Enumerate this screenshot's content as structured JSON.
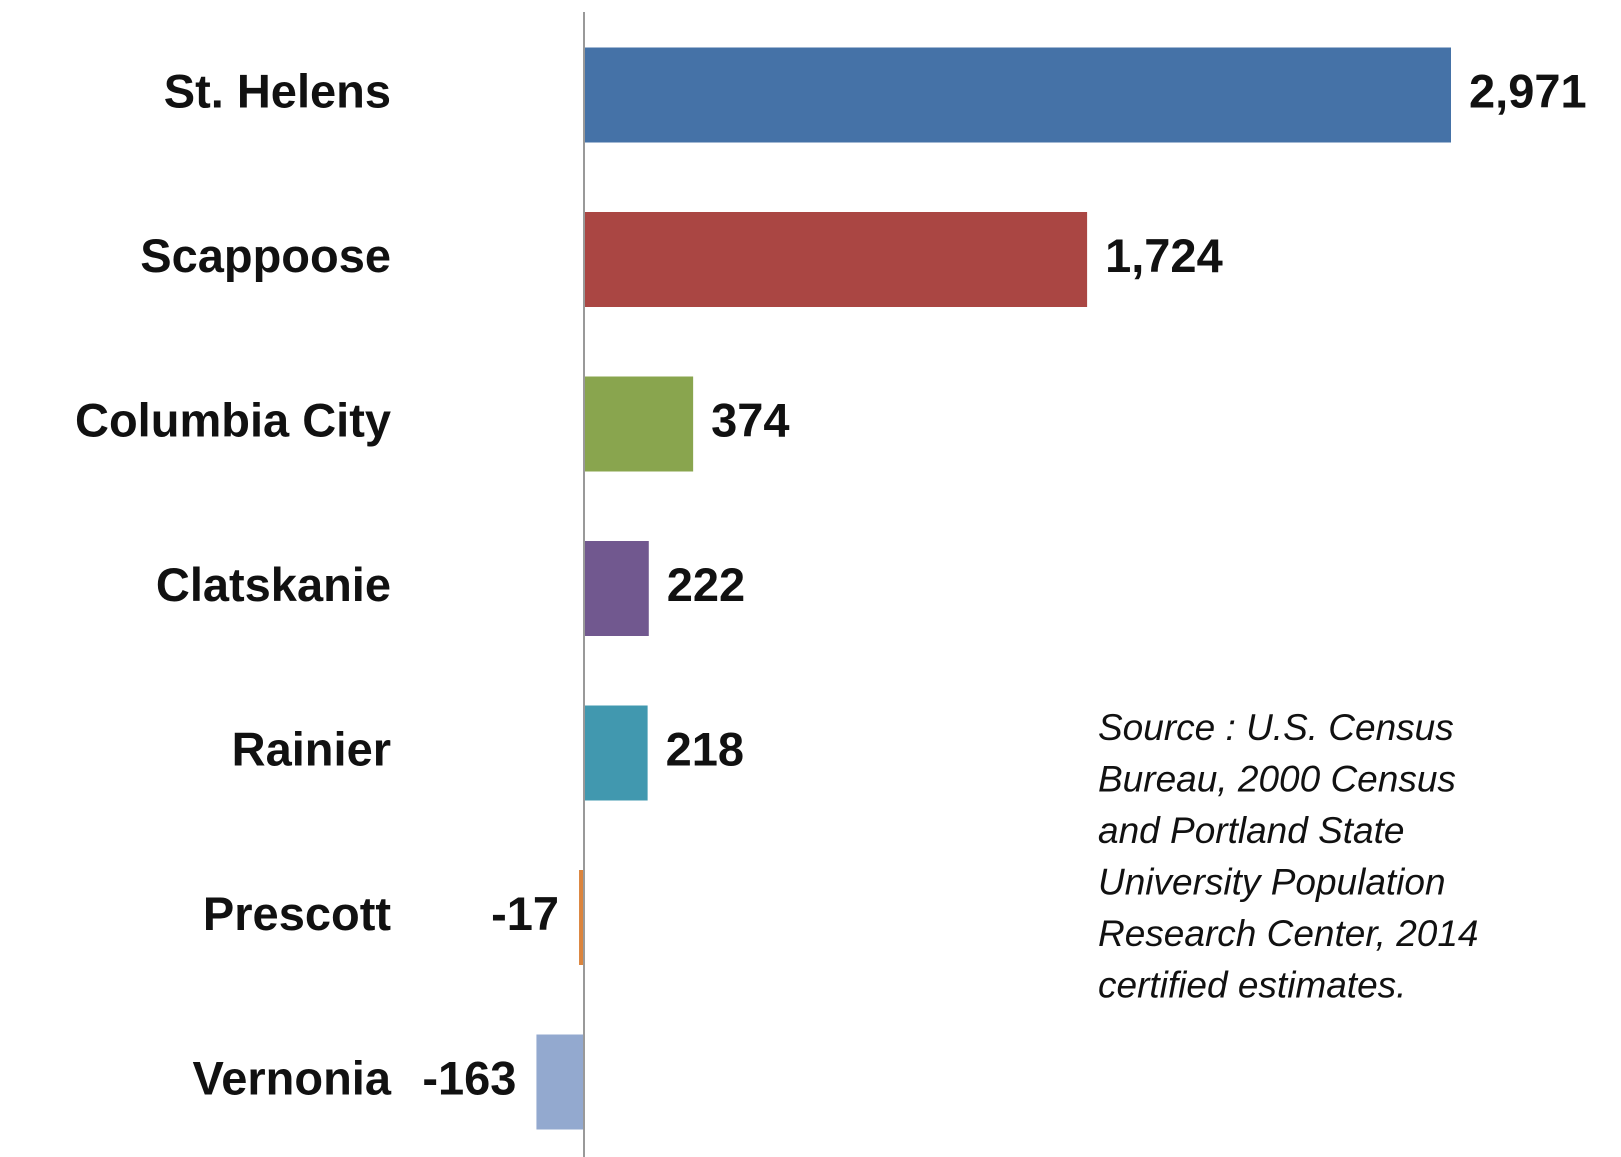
{
  "chart_data": {
    "type": "barh",
    "categories": [
      "St. Helens",
      "Scappoose",
      "Columbia City",
      "Clatskanie",
      "Rainier",
      "Prescott",
      "Vernonia"
    ],
    "values": [
      2971,
      1724,
      374,
      222,
      218,
      -17,
      -163
    ],
    "value_labels": [
      "2,971",
      "1,724",
      "374",
      "222",
      "218",
      "-17",
      "-163"
    ],
    "colors": [
      "#4572a7",
      "#aa4643",
      "#89a54e",
      "#71588f",
      "#4198af",
      "#db843d",
      "#93a9cf"
    ],
    "annotation": [
      "Source : U.S. Census",
      "Bureau, 2000  Census",
      "and Portland State",
      "University Population",
      "Research Center, 2014",
      "certified estimates."
    ]
  }
}
